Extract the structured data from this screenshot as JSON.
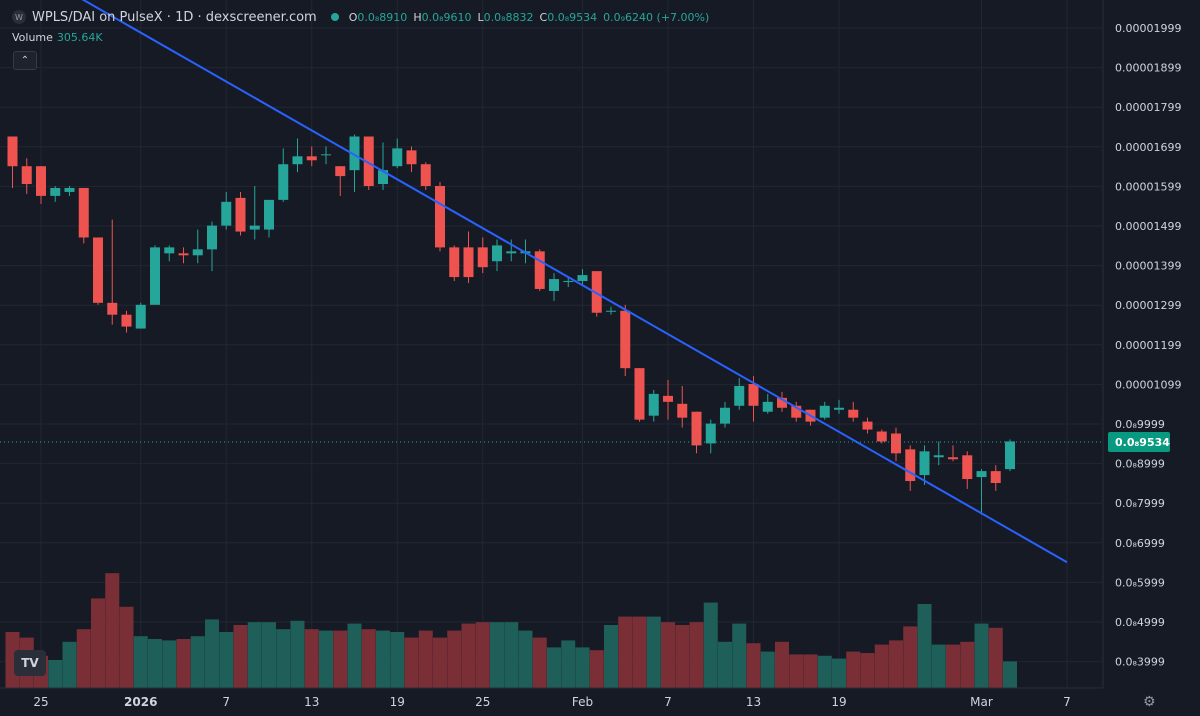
{
  "header": {
    "logo": "W",
    "title": "WPLS/DAI on PulseX · 1D · dexscreener.com",
    "status_dot_color": "#26a69a",
    "ohlc": [
      {
        "key": "O",
        "value": "0.0₈8910"
      },
      {
        "key": "H",
        "value": "0.0₈9610"
      },
      {
        "key": "L",
        "value": "0.0₈8832"
      },
      {
        "key": "C",
        "value": "0.0₈9534"
      }
    ],
    "change": "0.0₉6240 (+7.00%)"
  },
  "volume_legend": {
    "label": "Volume",
    "value": "305.64K"
  },
  "collapse_icon": "chevron-up-icon",
  "colors": {
    "bg": "#161a25",
    "up": "#26a69a",
    "down": "#ef5350",
    "trendline": "#2962ff",
    "grid": "#232632",
    "price_label_bg": "#089981"
  },
  "price_axis": {
    "labels": [
      "0.00001999",
      "0.00001899",
      "0.00001799",
      "0.00001699",
      "0.00001599",
      "0.00001499",
      "0.00001399",
      "0.00001299",
      "0.00001199",
      "0.00001099",
      "0.0₈9999",
      "0.0₈8999",
      "0.0₈7999",
      "0.0₈6999",
      "0.0₈5999",
      "0.0₈4999",
      "0.0₈3999"
    ],
    "current_price_label": "0.0₈9534"
  },
  "time_axis": {
    "labels": [
      "25",
      "2026",
      "7",
      "13",
      "19",
      "25",
      "Feb",
      "7",
      "13",
      "19",
      "Mar",
      "7"
    ]
  },
  "chart_data": {
    "type": "candlestick",
    "title": "WPLS/DAI on PulseX · 1D · dexscreener.com",
    "price_unit": "1e-8 DAI",
    "ylim": [
      3.5,
      20.5
    ],
    "x_start": "2025-12-23",
    "candles": [
      {
        "date": "2025-12-23",
        "o": 17.25,
        "h": 17.25,
        "l": 15.95,
        "c": 16.5
      },
      {
        "date": "2025-12-24",
        "o": 16.5,
        "h": 16.7,
        "l": 15.8,
        "c": 16.05
      },
      {
        "date": "2025-12-25",
        "o": 16.5,
        "h": 16.5,
        "l": 15.55,
        "c": 15.75
      },
      {
        "date": "2025-12-26",
        "o": 15.75,
        "h": 16.0,
        "l": 15.6,
        "c": 15.95
      },
      {
        "date": "2025-12-27",
        "o": 15.85,
        "h": 16.0,
        "l": 15.75,
        "c": 15.95
      },
      {
        "date": "2025-12-28",
        "o": 15.95,
        "h": 15.95,
        "l": 14.55,
        "c": 14.7
      },
      {
        "date": "2025-12-29",
        "o": 14.7,
        "h": 14.7,
        "l": 13.0,
        "c": 13.05
      },
      {
        "date": "2025-12-30",
        "o": 13.05,
        "h": 15.15,
        "l": 12.5,
        "c": 12.75
      },
      {
        "date": "2025-12-31",
        "o": 12.75,
        "h": 12.85,
        "l": 12.3,
        "c": 12.45
      },
      {
        "date": "2026-01-01",
        "o": 12.4,
        "h": 13.05,
        "l": 12.4,
        "c": 13.0
      },
      {
        "date": "2026-01-02",
        "o": 13.0,
        "h": 14.5,
        "l": 13.0,
        "c": 14.45
      },
      {
        "date": "2026-01-03",
        "o": 14.3,
        "h": 14.5,
        "l": 14.1,
        "c": 14.45
      },
      {
        "date": "2026-01-04",
        "o": 14.3,
        "h": 14.45,
        "l": 14.05,
        "c": 14.25
      },
      {
        "date": "2026-01-05",
        "o": 14.25,
        "h": 14.9,
        "l": 14.05,
        "c": 14.4
      },
      {
        "date": "2026-01-06",
        "o": 14.4,
        "h": 15.1,
        "l": 13.85,
        "c": 15.0
      },
      {
        "date": "2026-01-07",
        "o": 15.0,
        "h": 15.85,
        "l": 14.9,
        "c": 15.6
      },
      {
        "date": "2026-01-08",
        "o": 15.7,
        "h": 15.85,
        "l": 14.75,
        "c": 14.85
      },
      {
        "date": "2026-01-09",
        "o": 14.9,
        "h": 16.0,
        "l": 14.65,
        "c": 15.0
      },
      {
        "date": "2026-01-10",
        "o": 14.9,
        "h": 15.6,
        "l": 14.7,
        "c": 15.65
      },
      {
        "date": "2026-01-11",
        "o": 15.65,
        "h": 16.95,
        "l": 15.6,
        "c": 16.55
      },
      {
        "date": "2026-01-12",
        "o": 16.55,
        "h": 17.2,
        "l": 16.35,
        "c": 16.75
      },
      {
        "date": "2026-01-13",
        "o": 16.75,
        "h": 17.0,
        "l": 16.5,
        "c": 16.65
      },
      {
        "date": "2026-01-14",
        "o": 16.8,
        "h": 17.0,
        "l": 16.55,
        "c": 16.8
      },
      {
        "date": "2026-01-15",
        "o": 16.5,
        "h": 16.5,
        "l": 15.75,
        "c": 16.25
      },
      {
        "date": "2026-01-16",
        "o": 16.4,
        "h": 17.3,
        "l": 15.85,
        "c": 17.25
      },
      {
        "date": "2026-01-17",
        "o": 17.25,
        "h": 17.25,
        "l": 15.9,
        "c": 16.0
      },
      {
        "date": "2026-01-18",
        "o": 16.05,
        "h": 17.1,
        "l": 15.9,
        "c": 16.4
      },
      {
        "date": "2026-01-19",
        "o": 16.5,
        "h": 17.2,
        "l": 16.45,
        "c": 16.95
      },
      {
        "date": "2026-01-20",
        "o": 16.9,
        "h": 17.0,
        "l": 16.35,
        "c": 16.55
      },
      {
        "date": "2026-01-21",
        "o": 16.55,
        "h": 16.6,
        "l": 15.9,
        "c": 16.0
      },
      {
        "date": "2026-01-22",
        "o": 16.0,
        "h": 16.1,
        "l": 14.35,
        "c": 14.45
      },
      {
        "date": "2026-01-23",
        "o": 14.45,
        "h": 14.5,
        "l": 13.6,
        "c": 13.7
      },
      {
        "date": "2026-01-24",
        "o": 14.45,
        "h": 14.85,
        "l": 13.55,
        "c": 13.7
      },
      {
        "date": "2026-01-25",
        "o": 14.45,
        "h": 14.7,
        "l": 13.8,
        "c": 13.95
      },
      {
        "date": "2026-01-26",
        "o": 14.1,
        "h": 14.65,
        "l": 13.85,
        "c": 14.5
      },
      {
        "date": "2026-01-27",
        "o": 14.3,
        "h": 14.65,
        "l": 14.1,
        "c": 14.35
      },
      {
        "date": "2026-01-28",
        "o": 14.3,
        "h": 14.65,
        "l": 14.05,
        "c": 14.35
      },
      {
        "date": "2026-01-29",
        "o": 14.35,
        "h": 14.4,
        "l": 13.35,
        "c": 13.4
      },
      {
        "date": "2026-01-30",
        "o": 13.35,
        "h": 13.8,
        "l": 13.1,
        "c": 13.65
      },
      {
        "date": "2026-01-31",
        "o": 13.6,
        "h": 13.7,
        "l": 13.45,
        "c": 13.6
      },
      {
        "date": "2026-02-01",
        "o": 13.6,
        "h": 13.9,
        "l": 13.5,
        "c": 13.75
      },
      {
        "date": "2026-02-02",
        "o": 13.85,
        "h": 13.85,
        "l": 12.7,
        "c": 12.8
      },
      {
        "date": "2026-02-03",
        "o": 12.85,
        "h": 12.95,
        "l": 12.75,
        "c": 12.85
      },
      {
        "date": "2026-02-04",
        "o": 12.85,
        "h": 13.0,
        "l": 11.2,
        "c": 11.4
      },
      {
        "date": "2026-02-05",
        "o": 11.4,
        "h": 11.4,
        "l": 10.05,
        "c": 10.1
      },
      {
        "date": "2026-02-06",
        "o": 10.2,
        "h": 10.85,
        "l": 10.05,
        "c": 10.75
      },
      {
        "date": "2026-02-07",
        "o": 10.7,
        "h": 11.1,
        "l": 10.1,
        "c": 10.55
      },
      {
        "date": "2026-02-08",
        "o": 10.5,
        "h": 10.95,
        "l": 9.9,
        "c": 10.15
      },
      {
        "date": "2026-02-09",
        "o": 10.3,
        "h": 10.3,
        "l": 9.25,
        "c": 9.45
      },
      {
        "date": "2026-02-10",
        "o": 9.5,
        "h": 10.1,
        "l": 9.25,
        "c": 10.0
      },
      {
        "date": "2026-02-11",
        "o": 10.0,
        "h": 10.55,
        "l": 9.9,
        "c": 10.4
      },
      {
        "date": "2026-02-12",
        "o": 10.45,
        "h": 11.15,
        "l": 10.35,
        "c": 10.95
      },
      {
        "date": "2026-02-13",
        "o": 11.0,
        "h": 11.2,
        "l": 10.05,
        "c": 10.45
      },
      {
        "date": "2026-02-14",
        "o": 10.3,
        "h": 10.75,
        "l": 10.25,
        "c": 10.55
      },
      {
        "date": "2026-02-15",
        "o": 10.65,
        "h": 10.8,
        "l": 10.3,
        "c": 10.4
      },
      {
        "date": "2026-02-16",
        "o": 10.45,
        "h": 10.55,
        "l": 10.05,
        "c": 10.15
      },
      {
        "date": "2026-02-17",
        "o": 10.35,
        "h": 10.35,
        "l": 9.95,
        "c": 10.05
      },
      {
        "date": "2026-02-18",
        "o": 10.15,
        "h": 10.55,
        "l": 10.1,
        "c": 10.45
      },
      {
        "date": "2026-02-19",
        "o": 10.35,
        "h": 10.6,
        "l": 10.25,
        "c": 10.4
      },
      {
        "date": "2026-02-20",
        "o": 10.35,
        "h": 10.55,
        "l": 10.05,
        "c": 10.15
      },
      {
        "date": "2026-02-21",
        "o": 10.05,
        "h": 10.15,
        "l": 9.75,
        "c": 9.85
      },
      {
        "date": "2026-02-22",
        "o": 9.8,
        "h": 9.85,
        "l": 9.5,
        "c": 9.55
      },
      {
        "date": "2026-02-23",
        "o": 9.75,
        "h": 9.9,
        "l": 9.05,
        "c": 9.25
      },
      {
        "date": "2026-02-24",
        "o": 9.35,
        "h": 9.45,
        "l": 8.3,
        "c": 8.55
      },
      {
        "date": "2026-02-25",
        "o": 8.7,
        "h": 9.45,
        "l": 8.45,
        "c": 9.3
      },
      {
        "date": "2026-02-26",
        "o": 9.15,
        "h": 9.55,
        "l": 8.95,
        "c": 9.2
      },
      {
        "date": "2026-02-27",
        "o": 9.15,
        "h": 9.45,
        "l": 9.05,
        "c": 9.1
      },
      {
        "date": "2026-02-28",
        "o": 9.2,
        "h": 9.3,
        "l": 8.35,
        "c": 8.6
      },
      {
        "date": "2026-03-01",
        "o": 8.65,
        "h": 8.85,
        "l": 7.7,
        "c": 8.8
      },
      {
        "date": "2026-03-02",
        "o": 8.8,
        "h": 8.95,
        "l": 8.3,
        "c": 8.5
      },
      {
        "date": "2026-03-03",
        "o": 8.85,
        "h": 9.6,
        "l": 8.8,
        "c": 9.55
      }
    ],
    "volume": [
      40,
      36,
      23,
      20,
      33,
      42,
      64,
      82,
      58,
      37,
      35,
      34,
      35,
      37,
      49,
      40,
      45,
      47,
      47,
      42,
      48,
      42,
      41,
      41,
      46,
      42,
      41,
      40,
      36,
      41,
      36,
      41,
      46,
      47,
      47,
      47,
      41,
      36,
      29,
      34,
      29,
      27,
      45,
      51,
      51,
      51,
      47,
      45,
      47,
      61,
      33,
      46,
      32,
      26,
      33,
      24,
      24,
      23,
      21,
      26,
      25,
      31,
      34,
      44,
      60,
      31,
      31,
      33,
      46,
      43,
      19
    ],
    "volume_colors_note": "per-candle: up=green, down=red",
    "volume_ylim": [
      0,
      140
    ],
    "trendline": {
      "from": {
        "date": "2025-12-27",
        "price": 20.9
      },
      "to": {
        "date": "2026-03-07",
        "price": 6.5
      }
    },
    "current_price": 9.534,
    "legend": {
      "ohlc_color": "#26a69a"
    },
    "grid": true
  }
}
